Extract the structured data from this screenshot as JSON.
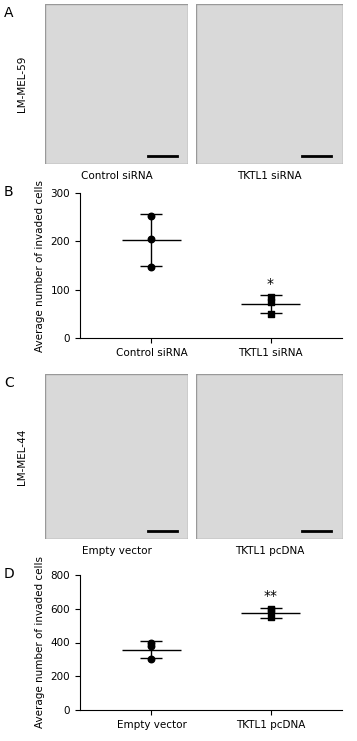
{
  "image_panels": [
    {
      "panel": "A",
      "cell_line": "LM-MEL-59",
      "captions": [
        "Control siRNA",
        "TKTL1 siRNA"
      ]
    },
    {
      "panel": "C",
      "cell_line": "LM-MEL-44",
      "captions": [
        "Empty vector",
        "TKTL1 pcDNA"
      ]
    }
  ],
  "chart_data": [
    {
      "type": "scatter",
      "panel": "B",
      "categories": [
        "Control siRNA",
        "TKTL1 siRNA"
      ],
      "values": [
        [
          147,
          205,
          253
        ],
        [
          50,
          75,
          85
        ]
      ],
      "means": [
        202,
        70
      ],
      "errors": [
        54,
        18
      ],
      "markers": [
        "circle",
        "square"
      ],
      "color": "#000000",
      "y_label": "Average number of invaded cells",
      "ylim": [
        0,
        300
      ],
      "yticks": [
        0,
        100,
        200,
        300
      ],
      "annotations": [
        {
          "category": "TKTL1 siRNA",
          "text": "*"
        }
      ]
    },
    {
      "type": "scatter",
      "panel": "D",
      "categories": [
        "Empty vector",
        "TKTL1 pcDNA"
      ],
      "values": [
        [
          395,
          380,
          305
        ],
        [
          600,
          590,
          550
        ]
      ],
      "means": [
        358,
        575
      ],
      "errors": [
        50,
        30
      ],
      "markers": [
        "circle",
        "square"
      ],
      "color": "#000000",
      "y_label": "Average number of invaded cells",
      "ylim": [
        0,
        800
      ],
      "yticks": [
        0,
        200,
        400,
        600,
        800
      ],
      "annotations": [
        {
          "category": "TKTL1 pcDNA",
          "text": "**"
        }
      ]
    }
  ]
}
